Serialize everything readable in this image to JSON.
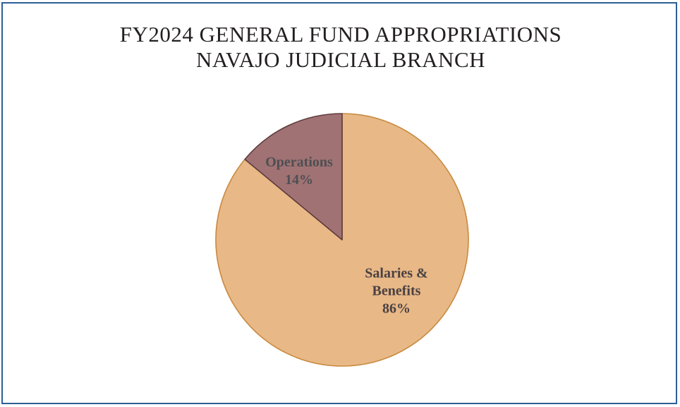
{
  "chart_data": {
    "type": "pie",
    "title": "FY2024 GENERAL FUND APPROPRIATIONS",
    "subtitle": "NAVAJO JUDICIAL BRANCH",
    "slices": [
      {
        "label_lines": [
          "Salaries &",
          "Benefits"
        ],
        "percent_label": "86%",
        "value": 86,
        "color": "#e8b887",
        "stroke": "#c98a3f",
        "text_color": "#4a4142"
      },
      {
        "label_lines": [
          "Operations"
        ],
        "percent_label": "14%",
        "value": 14,
        "color": "#a07274",
        "stroke": "#5e3b3d",
        "text_color": "#4f4f52"
      }
    ],
    "border_color": "#2e5f95"
  }
}
